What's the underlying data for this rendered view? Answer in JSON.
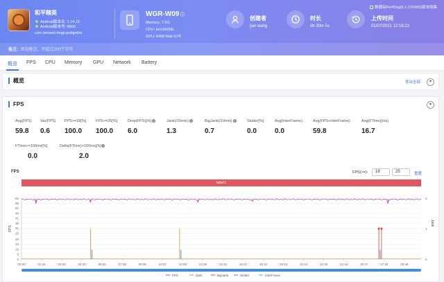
{
  "header": {
    "app": {
      "name": "和平精英",
      "android_version": "Android版本名: 1.14.10",
      "android_code": "Android版本号: 9600",
      "package": "com.tencent.tmgp.pubgmhd"
    },
    "device": {
      "name": "WGR-W09",
      "memory": "Memory: 7.5G",
      "cpu": "CPU: kirin9000E",
      "gpu": "GPU: ARM Mali-G78"
    },
    "creator": {
      "title": "创建者",
      "value": "jian wang"
    },
    "duration": {
      "title": "时长",
      "value": "0h 30m 5s"
    },
    "upload": {
      "title": "上传时间",
      "value": "01/07/2021 12:16:22"
    },
    "perfdog_version": "数据由PerfDog(5.1.210300)版本收集",
    "note": {
      "label": "备注:",
      "value": "添加备注，不超过200个字符"
    }
  },
  "tabs": [
    {
      "label": "概览",
      "active": true
    },
    {
      "label": "FPS",
      "active": false
    },
    {
      "label": "CPU",
      "active": false
    },
    {
      "label": "Memory",
      "active": false
    },
    {
      "label": "GPU",
      "active": false
    },
    {
      "label": "Network",
      "active": false
    },
    {
      "label": "Battery",
      "active": false
    }
  ],
  "overview": {
    "title": "概览",
    "export_label": "导出全部"
  },
  "fps_card": {
    "title": "FPS",
    "metrics_row1": [
      {
        "label": "Avg(FPS)",
        "value": "59.8",
        "help": false
      },
      {
        "label": "Var(FPS)",
        "value": "0.6",
        "help": false
      },
      {
        "label": "FPS>=18[%]",
        "value": "100.0",
        "help": false
      },
      {
        "label": "FPS>=25[%]",
        "value": "100.0",
        "help": false
      },
      {
        "label": "Drop(FPS)[/h]",
        "value": "6.0",
        "help": true
      },
      {
        "label": "Jank(/10min)",
        "value": "1.3",
        "help": true
      },
      {
        "label": "BigJank(/10min)",
        "value": "0.7",
        "help": true
      },
      {
        "label": "Stutter[%]",
        "value": "0.0",
        "help": false
      },
      {
        "label": "Avg(InterFrame)",
        "value": "0.0",
        "help": false
      },
      {
        "label": "Avg(FPS+InterFrame)",
        "value": "59.8",
        "help": false
      },
      {
        "label": "Avg(FTime)[ms]",
        "value": "16.7",
        "help": false
      }
    ],
    "metrics_row2": [
      {
        "label": "FTime>=100ms[%]",
        "value": "0.0",
        "help": false
      },
      {
        "label": "Delta(FTime)>100ms[/h]",
        "value": "2.0",
        "help": true
      }
    ],
    "chart_header": {
      "label": "FPS",
      "threshold_label": "FPS(>=):",
      "threshold_1": "18",
      "threshold_2": "25",
      "reset_label": "重置"
    },
    "label_bar": "label1"
  },
  "colors": {
    "accent": "#4a72e8",
    "fps": "#b03cb0",
    "jank": "#f08a2a",
    "bigjank": "#e04040",
    "stutter": "#3d8de0",
    "interframe": "#40c0c0",
    "label_bar": "#e4545e"
  },
  "chart_data": {
    "type": "line",
    "x_ticks": [
      "00:00",
      "01:31",
      "03:02",
      "04:33",
      "06:04",
      "07:35",
      "09:06",
      "10:37",
      "12:08",
      "13:39",
      "15:10",
      "16:41",
      "18:12",
      "19:43",
      "21:14",
      "22:45",
      "24:16",
      "25:47",
      "27:18",
      "28:49"
    ],
    "y_ticks": [
      "0",
      "5",
      "10",
      "15",
      "20",
      "26",
      "31",
      "36",
      "41",
      "46",
      "51",
      "56",
      "61"
    ],
    "y_ticks_right": [
      "0",
      "1",
      "2"
    ],
    "ylabel": "FPS",
    "ylabel_right": "Jank",
    "ylim": [
      0,
      61
    ],
    "ylim_right": [
      0,
      2
    ],
    "series": [
      {
        "name": "FPS",
        "value_level": 59.8,
        "dips": [
          {
            "x": 1.1,
            "y": 56
          },
          {
            "x": 5.2,
            "y": 57
          },
          {
            "x": 13.3,
            "y": 57
          },
          {
            "x": 17.4,
            "y": 58
          },
          {
            "x": 27.6,
            "y": 56
          }
        ]
      },
      {
        "name": "Jank",
        "spikes": [
          {
            "x": 5.2,
            "y": 1
          },
          {
            "x": 11.9,
            "y": 1
          },
          {
            "x": 26.9,
            "y": 1
          }
        ]
      },
      {
        "name": "BigJank",
        "spikes": [
          {
            "x": 26.9,
            "y": 1
          },
          {
            "x": 27.1,
            "y": 1
          }
        ]
      },
      {
        "name": "Stutter",
        "spikes": [
          {
            "x": 5.3,
            "y": 0.3
          },
          {
            "x": 12.0,
            "y": 0.3
          },
          {
            "x": 27.0,
            "y": 0.3
          }
        ]
      },
      {
        "name": "InterFrame",
        "spikes": []
      }
    ],
    "legend": [
      "FPS",
      "Jank",
      "BigJank",
      "Stutter",
      "InterFrame"
    ],
    "legend_position": "bottom",
    "grid": true
  }
}
